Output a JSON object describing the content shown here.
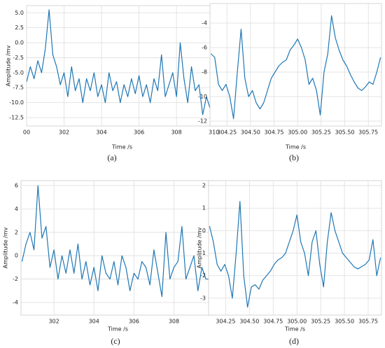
{
  "chart_data": [
    {
      "type": "line",
      "caption": "(a)",
      "xlabel": "Time /s",
      "ylabel": "Amplitude /mv",
      "color": "#1f77b4",
      "grid": true,
      "xlim": [
        300,
        310.2
      ],
      "ylim": [
        -13.9,
        6.2
      ],
      "xticks": [
        {
          "value": 300,
          "label": "00"
        },
        302,
        304,
        306,
        308,
        310
      ],
      "yticks": [
        {
          "value": 5,
          "label": "5.0"
        },
        2.5,
        {
          "value": 0,
          "label": "0.0"
        },
        -2.5,
        {
          "value": -5,
          "label": "-5.0"
        },
        -7.5,
        {
          "value": -10,
          "label": "-10.0"
        },
        -12.5
      ],
      "x": [
        300,
        300.2,
        300.4,
        300.6,
        300.8,
        301,
        301.2,
        301.4,
        301.6,
        301.8,
        302,
        302.2,
        302.4,
        302.6,
        302.8,
        303,
        303.2,
        303.4,
        303.6,
        303.8,
        304,
        304.2,
        304.4,
        304.6,
        304.8,
        305,
        305.2,
        305.4,
        305.6,
        305.8,
        306,
        306.2,
        306.4,
        306.6,
        306.8,
        307,
        307.2,
        307.4,
        307.6,
        307.8,
        308,
        308.2,
        308.4,
        308.6,
        308.8,
        309,
        309.2,
        309.4,
        309.6,
        309.8,
        310
      ],
      "values": [
        -6.5,
        -4,
        -6,
        -3,
        -5,
        -1,
        5.5,
        -2,
        -4,
        -7,
        -5,
        -9,
        -4,
        -8,
        -6,
        -10,
        -6,
        -8,
        -5,
        -9,
        -7,
        -10,
        -5,
        -8,
        -6.5,
        -10,
        -7,
        -9,
        -6,
        -8.5,
        -5.5,
        -9,
        -7,
        -10,
        -6,
        -8,
        -2,
        -9,
        -7,
        -5,
        -9,
        0,
        -6,
        -10,
        -4,
        -8,
        -7,
        -12,
        -9,
        -11,
        -10.5
      ]
    },
    {
      "type": "line",
      "caption": "(b)",
      "xlabel": "Time /s",
      "color": "#1f77b4",
      "grid": true,
      "xlim": [
        304.07,
        305.89
      ],
      "ylim": [
        -12.4,
        -2.4
      ],
      "xticks": [
        304.25,
        {
          "value": 304.5,
          "label": "304.50"
        },
        304.75,
        {
          "value": 305,
          "label": "305.00"
        },
        305.25,
        {
          "value": 305.5,
          "label": "305.50"
        },
        305.75
      ],
      "yticks": [
        -4,
        -6,
        -8,
        -10,
        -12
      ],
      "x": [
        304.08,
        304.12,
        304.16,
        304.2,
        304.24,
        304.28,
        304.32,
        304.36,
        304.4,
        304.44,
        304.48,
        304.52,
        304.56,
        304.6,
        304.64,
        304.68,
        304.72,
        304.76,
        304.8,
        304.84,
        304.88,
        304.92,
        304.96,
        305,
        305.04,
        305.08,
        305.12,
        305.16,
        305.2,
        305.24,
        305.28,
        305.32,
        305.36,
        305.4,
        305.44,
        305.48,
        305.52,
        305.56,
        305.6,
        305.64,
        305.68,
        305.72,
        305.76,
        305.8,
        305.84,
        305.88
      ],
      "values": [
        -6.5,
        -6.8,
        -9,
        -9.5,
        -9,
        -10,
        -11.8,
        -8,
        -4.5,
        -8.5,
        -10,
        -9.5,
        -10.5,
        -11,
        -10.5,
        -9.5,
        -8.5,
        -8,
        -7.5,
        -7.2,
        -7,
        -6.2,
        -5.8,
        -5.3,
        -6,
        -7,
        -9,
        -8.5,
        -9.5,
        -11.5,
        -8,
        -6.5,
        -3.4,
        -5.2,
        -6.2,
        -7,
        -7.5,
        -8.2,
        -8.8,
        -9.3,
        -9.5,
        -9.2,
        -8.8,
        -9,
        -8,
        -6.8
      ]
    },
    {
      "type": "line",
      "caption": "(c)",
      "xlabel": "Time /s",
      "ylabel": "Amplitude /mv",
      "color": "#1f77b4",
      "grid": true,
      "xlim": [
        300.35,
        310.05
      ],
      "ylim": [
        -5.08,
        6.42
      ],
      "xticks": [
        302,
        304,
        306,
        308
      ],
      "yticks": [
        6,
        4,
        2,
        0,
        -2,
        -4
      ],
      "x": [
        300.4,
        300.6,
        300.8,
        301,
        301.2,
        301.4,
        301.6,
        301.8,
        302,
        302.2,
        302.4,
        302.6,
        302.8,
        303,
        303.2,
        303.4,
        303.6,
        303.8,
        304,
        304.2,
        304.4,
        304.6,
        304.8,
        305,
        305.2,
        305.4,
        305.6,
        305.8,
        306,
        306.2,
        306.4,
        306.6,
        306.8,
        307,
        307.2,
        307.4,
        307.6,
        307.8,
        308,
        308.2,
        308.4,
        308.6,
        308.8,
        309,
        309.2,
        309.4,
        309.6,
        309.8,
        310
      ],
      "values": [
        -0.5,
        1,
        2,
        0.5,
        6,
        1.5,
        2.5,
        -1,
        0.5,
        -2,
        0,
        -1.5,
        0.5,
        -1.5,
        1,
        -2,
        -0.5,
        -2.5,
        -1,
        -3,
        0,
        -1.5,
        -2,
        -0.5,
        -2.5,
        0,
        -1,
        -3,
        -1.5,
        -2,
        -0.5,
        -1,
        -2.5,
        0.5,
        -1.5,
        -3.5,
        2,
        -2,
        -1,
        -0.5,
        2.5,
        -2,
        -1,
        0,
        -3,
        -1,
        -2,
        -2,
        -2.5
      ]
    },
    {
      "type": "line",
      "caption": "(d)",
      "xlabel": "Time /s",
      "ylabel": "Amplitude /mv",
      "color": "#1f77b4",
      "grid": true,
      "xlim": [
        304.07,
        305.89
      ],
      "ylim": [
        -3.75,
        2.22
      ],
      "xticks": [
        304.25,
        {
          "value": 304.5,
          "label": "304.50"
        },
        304.75,
        {
          "value": 305,
          "label": "305.00"
        },
        305.25,
        {
          "value": 305.5,
          "label": "305.50"
        },
        305.75
      ],
      "yticks": [
        2,
        1,
        0,
        -1,
        -2,
        -3
      ],
      "x": [
        304.08,
        304.12,
        304.16,
        304.2,
        304.24,
        304.28,
        304.32,
        304.36,
        304.4,
        304.44,
        304.48,
        304.52,
        304.56,
        304.6,
        304.64,
        304.68,
        304.72,
        304.76,
        304.8,
        304.84,
        304.88,
        304.92,
        304.96,
        305,
        305.04,
        305.08,
        305.12,
        305.16,
        305.2,
        305.24,
        305.28,
        305.32,
        305.36,
        305.4,
        305.44,
        305.48,
        305.52,
        305.56,
        305.6,
        305.64,
        305.68,
        305.72,
        305.76,
        305.8,
        305.84,
        305.88
      ],
      "values": [
        0.2,
        -0.5,
        -1.5,
        -1.8,
        -1.5,
        -2,
        -3,
        -1,
        1.3,
        -2,
        -3.4,
        -2.5,
        -2.4,
        -2.6,
        -2.2,
        -2,
        -1.8,
        -1.5,
        -1.3,
        -1.2,
        -1,
        -0.5,
        0,
        0.7,
        -0.5,
        -1,
        -2,
        -0.5,
        0,
        -1.5,
        -2.5,
        -0.5,
        0.8,
        0,
        -0.5,
        -1,
        -1.2,
        -1.4,
        -1.6,
        -1.7,
        -1.6,
        -1.5,
        -1.3,
        -0.4,
        -2,
        -1.2
      ]
    }
  ]
}
